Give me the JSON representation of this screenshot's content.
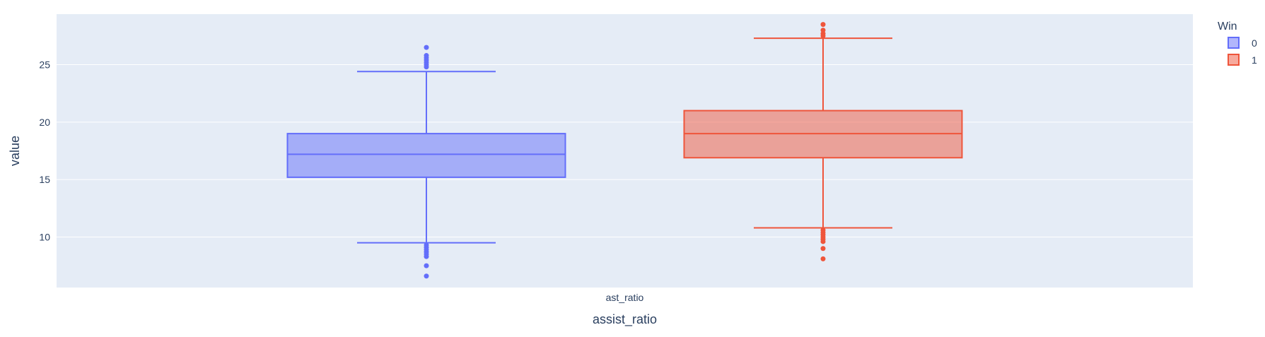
{
  "chart_data": {
    "type": "box",
    "xlabel": "assist_ratio",
    "ylabel": "value",
    "categories": [
      "ast_ratio"
    ],
    "ylim": [
      5.6,
      29.4
    ],
    "yticks": [
      10,
      15,
      20,
      25
    ],
    "grid": true,
    "legend": {
      "title": "Win",
      "placement": "top-right"
    },
    "colors": {
      "plot_bg": "#E5ECF6",
      "grid": "#ffffff",
      "text": "#2a3f5f"
    },
    "series": [
      {
        "name": "0",
        "color": "#636EFA",
        "fill": "rgba(99,110,250,0.5)",
        "category": "ast_ratio",
        "lowerfence": 9.5,
        "q1": 15.2,
        "median": 17.2,
        "q3": 19.0,
        "upperfence": 24.4,
        "outliers": [
          26.5,
          25.8,
          25.6,
          25.4,
          25.2,
          25.0,
          24.8,
          9.3,
          9.1,
          8.9,
          8.7,
          8.5,
          8.3,
          7.5,
          6.6
        ]
      },
      {
        "name": "1",
        "color": "#EF553B",
        "fill": "rgba(239,85,59,0.5)",
        "category": "ast_ratio",
        "lowerfence": 10.8,
        "q1": 16.9,
        "median": 19.0,
        "q3": 21.0,
        "upperfence": 27.3,
        "outliers": [
          28.5,
          28.0,
          27.7,
          27.5,
          10.6,
          10.4,
          10.2,
          10.0,
          9.8,
          9.6,
          9.0,
          8.1
        ]
      }
    ]
  }
}
